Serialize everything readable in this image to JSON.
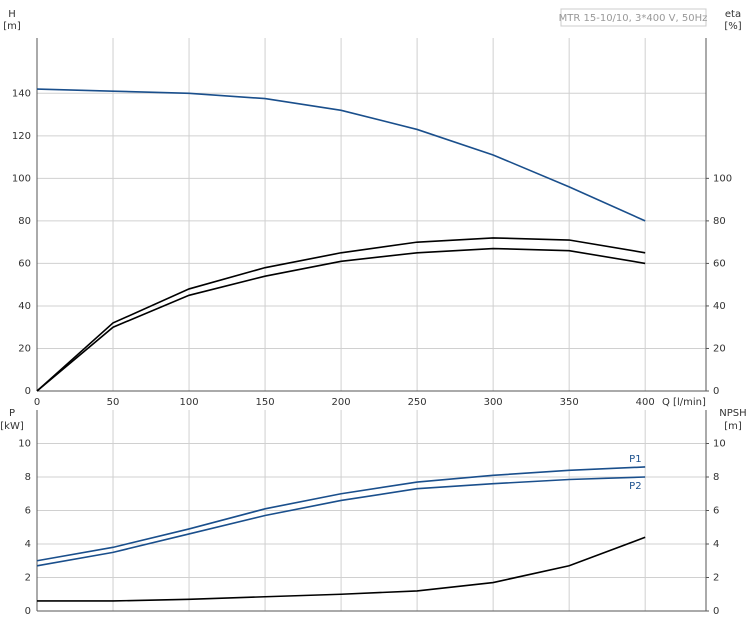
{
  "chart_data": [
    {
      "type": "line",
      "title": "MTR 15-10/10, 3*400 V, 50Hz",
      "x_label": "Q [l/min]",
      "y_label": "H",
      "y_unit": "[m]",
      "y2_label": "eta",
      "y2_unit": "[%]",
      "x": [
        0,
        50,
        100,
        150,
        200,
        250,
        300,
        350,
        400
      ],
      "series": [
        {
          "color": "#1a4f8c",
          "values": [
            142,
            141,
            140,
            137.5,
            132,
            123,
            111,
            96,
            80
          ]
        },
        {
          "color": "#000000",
          "axis": "y2",
          "values": [
            0,
            32,
            48,
            58,
            65,
            70,
            72,
            71,
            65
          ]
        },
        {
          "color": "#000000",
          "axis": "y2",
          "values": [
            0,
            30,
            45,
            54,
            61,
            65,
            67,
            66,
            60
          ]
        }
      ],
      "xlim": [
        0,
        440
      ],
      "xticks": [
        0,
        50,
        100,
        150,
        200,
        250,
        300,
        350,
        400
      ],
      "ylim": [
        0,
        166
      ],
      "yticks": [
        0,
        20,
        40,
        60,
        80,
        100,
        120,
        140
      ],
      "y2lim": [
        0,
        166
      ],
      "y2ticks": [
        0,
        20,
        40,
        60,
        80,
        100
      ],
      "grid": true
    },
    {
      "type": "line",
      "y_label": "P",
      "y_unit": "[kW]",
      "y2_label": "NPSH",
      "y2_unit": "[m]",
      "x": [
        0,
        50,
        100,
        150,
        200,
        250,
        300,
        350,
        400
      ],
      "series": [
        {
          "name": "P1",
          "color": "#1a4f8c",
          "values": [
            3.0,
            3.8,
            4.9,
            6.1,
            7.0,
            7.7,
            8.1,
            8.4,
            8.6
          ]
        },
        {
          "name": "P2",
          "color": "#1a4f8c",
          "values": [
            2.7,
            3.5,
            4.6,
            5.7,
            6.6,
            7.3,
            7.6,
            7.85,
            8.0
          ]
        },
        {
          "color": "#000000",
          "axis": "y2",
          "values": [
            0.6,
            0.6,
            0.7,
            0.85,
            1.0,
            1.2,
            1.7,
            2.7,
            4.4
          ]
        }
      ],
      "xlim": [
        0,
        440
      ],
      "ylim": [
        0,
        12
      ],
      "yticks": [
        0,
        2,
        4,
        6,
        8,
        10
      ],
      "y2lim": [
        0,
        12
      ],
      "y2ticks": [
        0,
        2,
        4,
        6,
        8,
        10
      ],
      "grid": true
    }
  ]
}
